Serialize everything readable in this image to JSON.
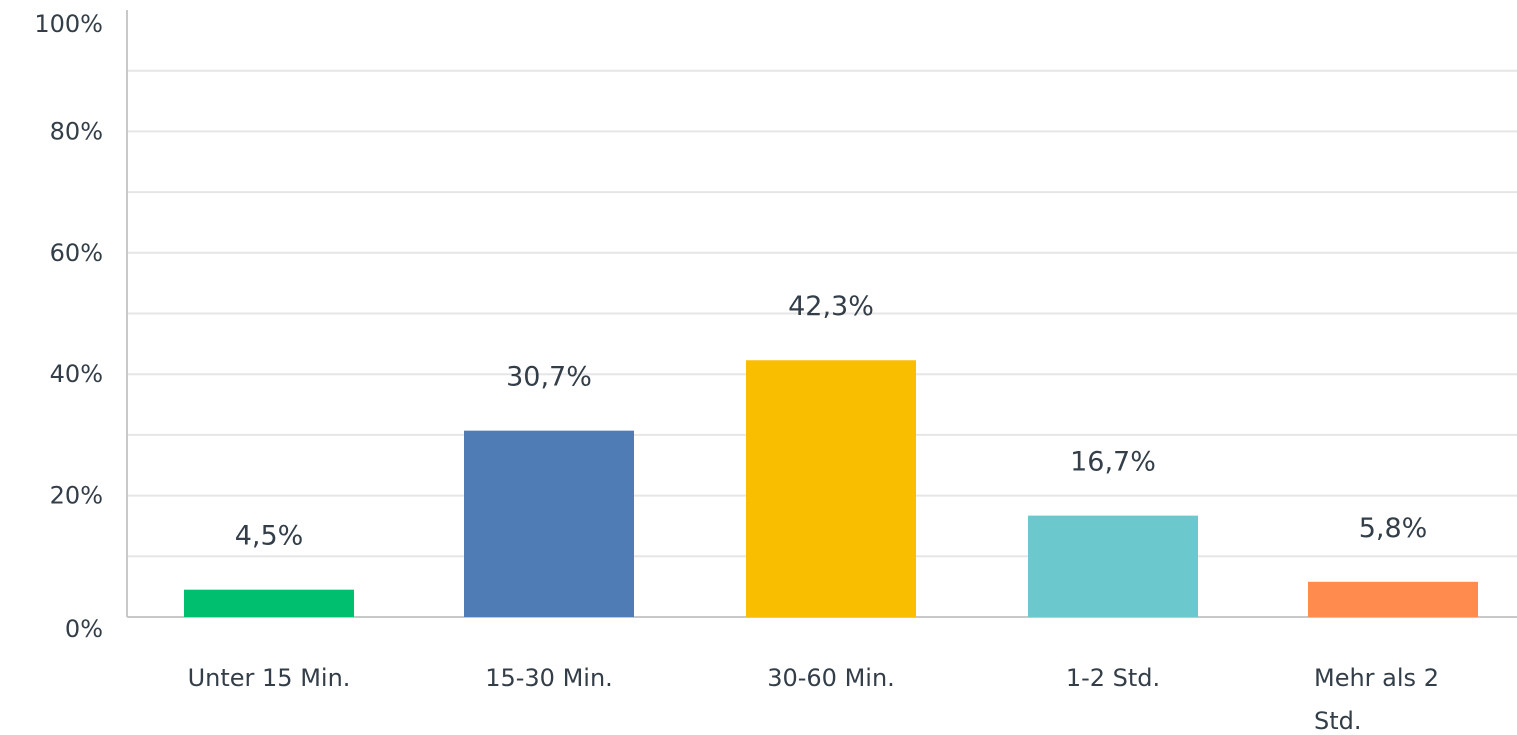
{
  "chart_data": {
    "type": "bar",
    "categories": [
      [
        "Unter 15 Min."
      ],
      [
        "15-30 Min."
      ],
      [
        "30-60 Min."
      ],
      [
        "1-2 Std."
      ],
      [
        "Mehr als 2",
        "Std."
      ]
    ],
    "values": [
      4.5,
      30.7,
      42.3,
      16.7,
      5.8
    ],
    "value_labels": [
      "4,5%",
      "30,7%",
      "42,3%",
      "16,7%",
      "5,8%"
    ],
    "colors": [
      "#00bf6f",
      "#507cb6",
      "#f9be00",
      "#6bc8cd",
      "#ff8b4f"
    ],
    "ylim": [
      0,
      100
    ],
    "yticks": [
      0,
      20,
      40,
      60,
      80,
      100
    ],
    "ytick_labels": [
      "0%",
      "20%",
      "40%",
      "60%",
      "80%",
      "100%"
    ],
    "minor_gridlines": [
      10,
      30,
      50,
      70,
      90
    ],
    "grid": true,
    "legend": false
  }
}
